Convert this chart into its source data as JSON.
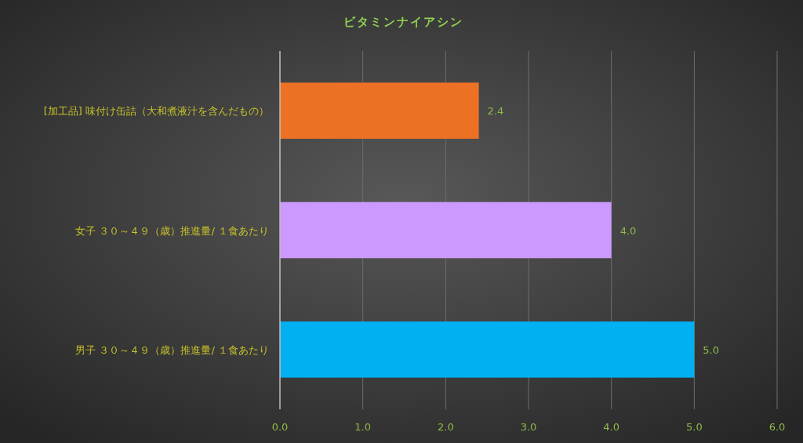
{
  "chart_data": {
    "type": "bar",
    "orientation": "horizontal",
    "title": "ビタミンナイアシン",
    "categories": [
      "[加工品] 味付け缶詰（大和煮液汁を含んだもの）",
      "女子 ３０～４９（歳）推進量/ １食あたり",
      "男子 ３０～４９（歳）推進量/ １食あたり"
    ],
    "values": [
      2.4,
      4.0,
      5.0
    ],
    "colors": [
      "#ed7125",
      "#cc99ff",
      "#00b0f0"
    ],
    "value_labels": [
      "2.4",
      "4.0",
      "5.0"
    ],
    "xlim": [
      0,
      6
    ],
    "xticks": [
      {
        "value": 0,
        "label": "0.0"
      },
      {
        "value": 1,
        "label": "1.0"
      },
      {
        "value": 2,
        "label": "2.0"
      },
      {
        "value": 3,
        "label": "3.0"
      },
      {
        "value": 4,
        "label": "4.0"
      },
      {
        "value": 5,
        "label": "5.0"
      },
      {
        "value": 6,
        "label": "6.0"
      }
    ],
    "grid": "x"
  }
}
